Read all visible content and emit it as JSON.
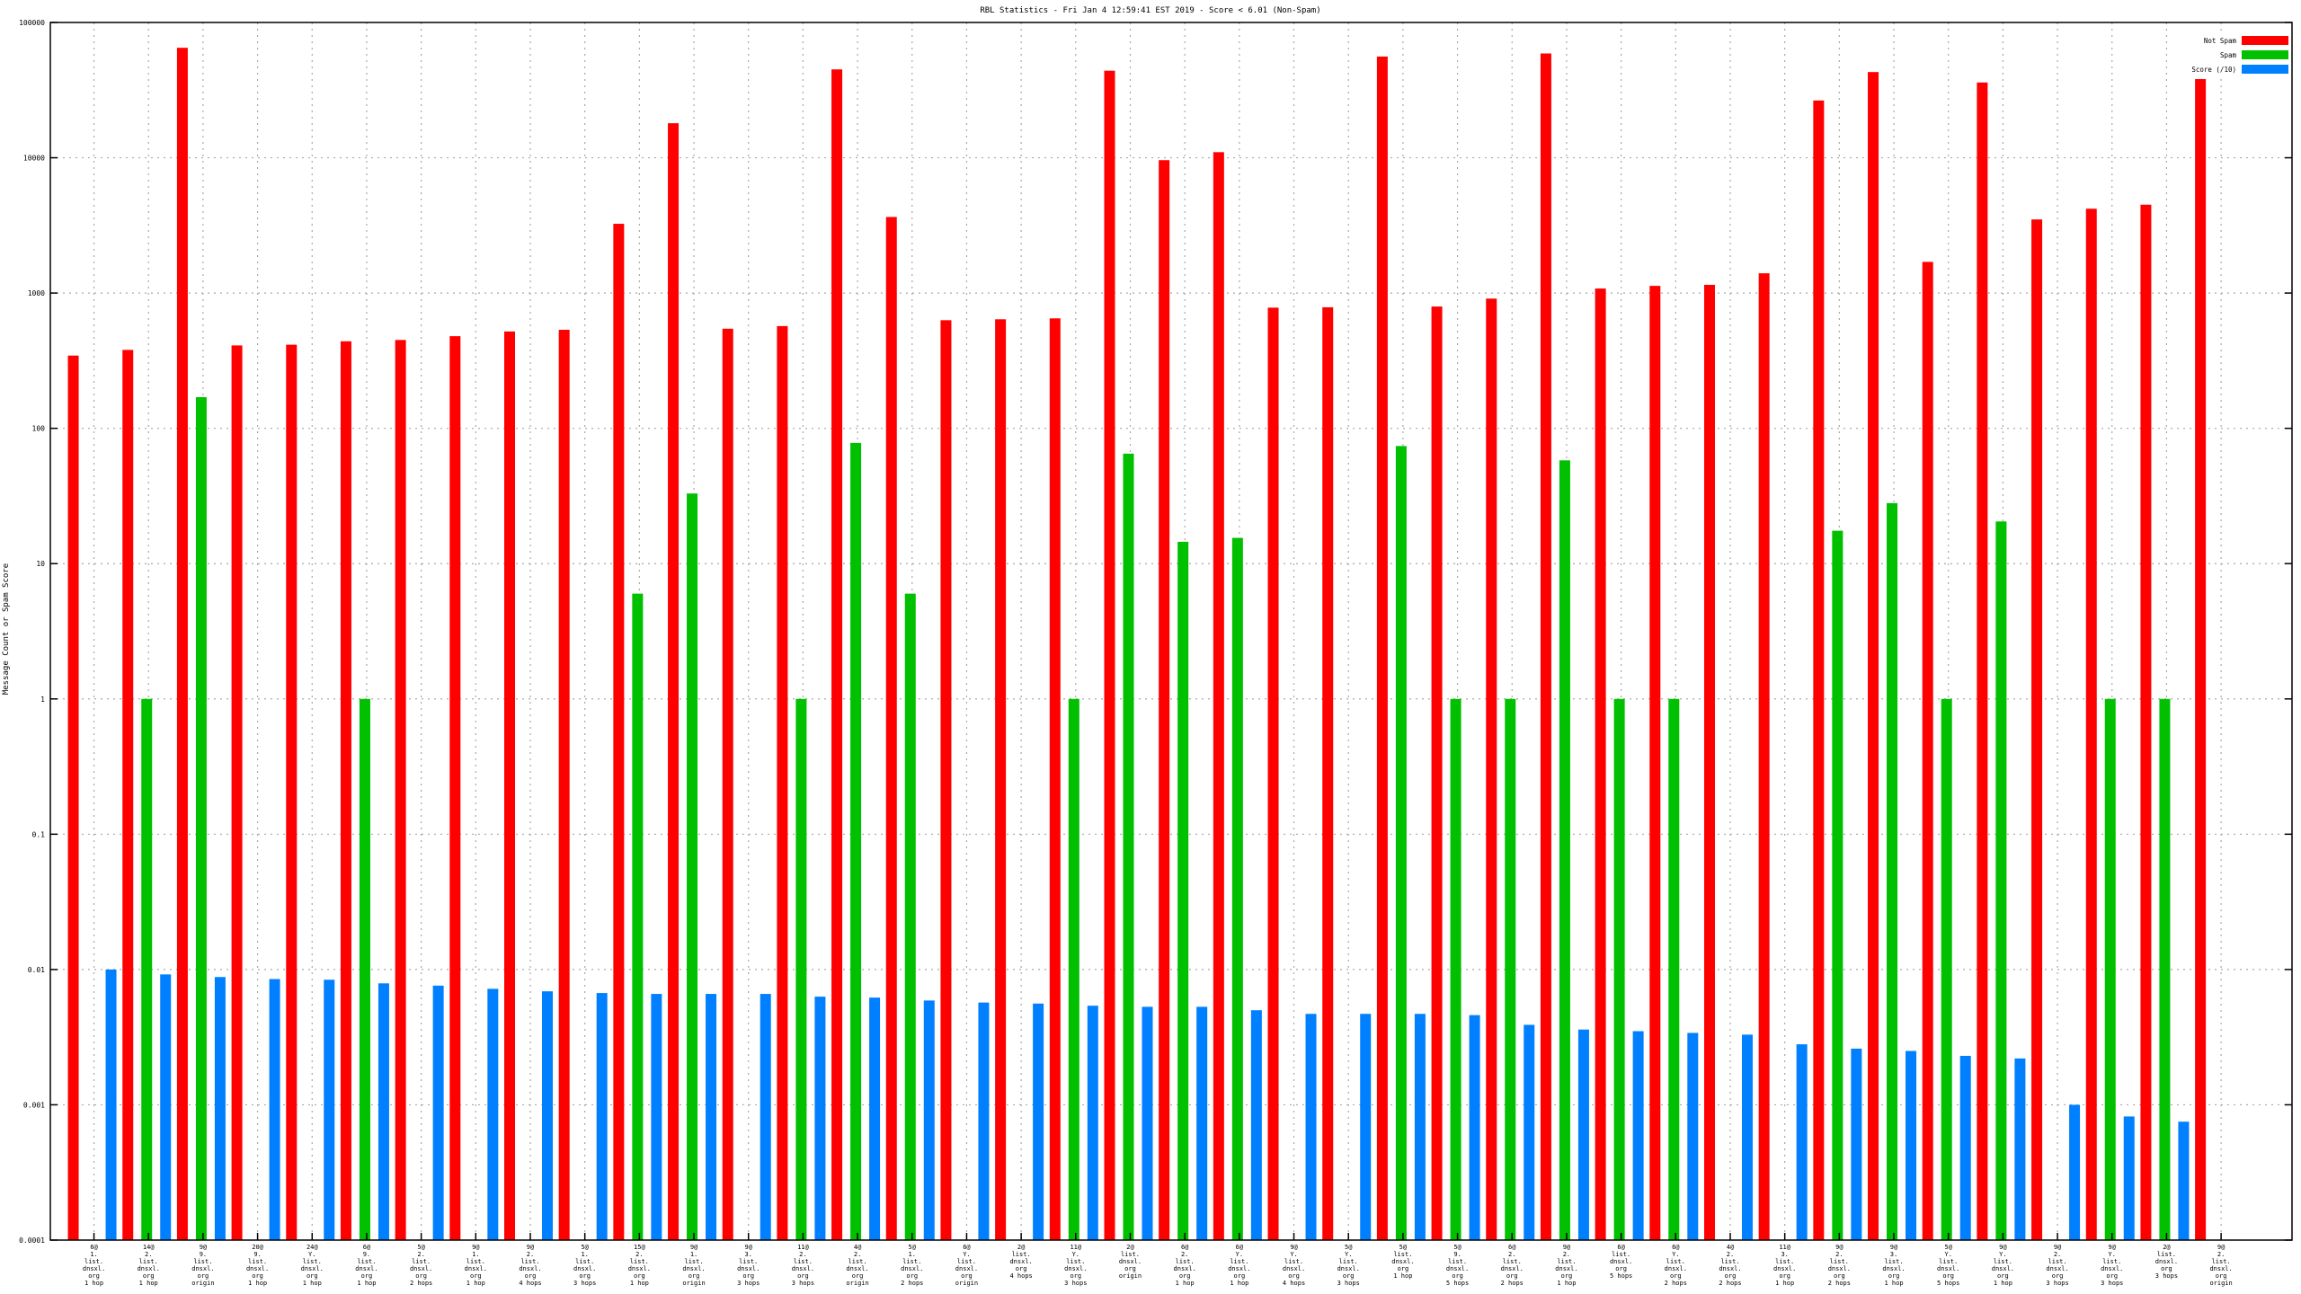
{
  "chart_data": {
    "type": "bar",
    "title": "RBL Statistics - Fri Jan  4 12:59:41 EST 2019 - Score < 6.01 (Non-Spam)",
    "ylabel": "Message Count or Spam Score",
    "xlabel": "",
    "yscale": "log",
    "ylim": [
      0.0001,
      100000
    ],
    "yticks": [
      "100000",
      "10000",
      "1000",
      "100",
      "10",
      "1",
      "0.1",
      "0.01",
      "0.001",
      "0.0001"
    ],
    "grid": true,
    "legend_position": "top-right",
    "categories": [
      [
        "6@",
        "1.",
        "list.",
        "dnsxl.",
        "org",
        "1 hop"
      ],
      [
        "14@",
        "2.",
        "list.",
        "dnsxl.",
        "org",
        "1 hop"
      ],
      [
        "9@",
        "9.",
        "list.",
        "dnsxl.",
        "org",
        "origin"
      ],
      [
        "20@",
        "9.",
        "list.",
        "dnsxl.",
        "org",
        "1 hop"
      ],
      [
        "24@",
        "Y.",
        "list.",
        "dnsxl.",
        "org",
        "1 hop"
      ],
      [
        "6@",
        "9.",
        "list.",
        "dnsxl.",
        "org",
        "1 hop"
      ],
      [
        "5@",
        "2.",
        "list.",
        "dnsxl.",
        "org",
        "2 hops"
      ],
      [
        "9@",
        "1.",
        "list.",
        "dnsxl.",
        "org",
        "1 hop"
      ],
      [
        "9@",
        "2.",
        "list.",
        "dnsxl.",
        "org",
        "4 hops"
      ],
      [
        "5@",
        "1.",
        "list.",
        "dnsxl.",
        "org",
        "3 hops"
      ],
      [
        "15@",
        "2.",
        "list.",
        "dnsxl.",
        "org",
        "1 hop"
      ],
      [
        "9@",
        "1.",
        "list.",
        "dnsxl.",
        "org",
        "origin"
      ],
      [
        "9@",
        "3.",
        "list.",
        "dnsxl.",
        "org",
        "3 hops"
      ],
      [
        "11@",
        "2.",
        "list.",
        "dnsxl.",
        "org",
        "3 hops"
      ],
      [
        "4@",
        "2.",
        "list.",
        "dnsxl.",
        "org",
        "origin"
      ],
      [
        "5@",
        "1.",
        "list.",
        "dnsxl.",
        "org",
        "2 hops"
      ],
      [
        "6@",
        "Y.",
        "list.",
        "dnsxl.",
        "org",
        "origin"
      ],
      [
        "2@",
        "list.",
        "dnsxl.",
        "org",
        "4 hops"
      ],
      [
        "11@",
        "Y.",
        "list.",
        "dnsxl.",
        "org",
        "3 hops"
      ],
      [
        "2@",
        "list.",
        "dnsxl.",
        "org",
        "origin"
      ],
      [
        "6@",
        "2.",
        "list.",
        "dnsxl.",
        "org",
        "1 hop"
      ],
      [
        "6@",
        "Y.",
        "list.",
        "dnsxl.",
        "org",
        "1 hop"
      ],
      [
        "9@",
        "Y.",
        "list.",
        "dnsxl.",
        "org",
        "4 hops"
      ],
      [
        "5@",
        "Y.",
        "list.",
        "dnsxl.",
        "org",
        "3 hops"
      ],
      [
        "5@",
        "list.",
        "dnsxl.",
        "org",
        "1 hop"
      ],
      [
        "5@",
        "9.",
        "list.",
        "dnsxl.",
        "org",
        "5 hops"
      ],
      [
        "6@",
        "2.",
        "list.",
        "dnsxl.",
        "org",
        "2 hops"
      ],
      [
        "9@",
        "2.",
        "list.",
        "dnsxl.",
        "org",
        "1 hop"
      ],
      [
        "6@",
        "list.",
        "dnsxl.",
        "org",
        "5 hops"
      ],
      [
        "6@",
        "Y.",
        "list.",
        "dnsxl.",
        "org",
        "2 hops"
      ],
      [
        "4@",
        "2.",
        "list.",
        "dnsxl.",
        "org",
        "2 hops"
      ],
      [
        "11@",
        "3.",
        "list.",
        "dnsxl.",
        "org",
        "1 hop"
      ],
      [
        "9@",
        "2.",
        "list.",
        "dnsxl.",
        "org",
        "2 hops"
      ],
      [
        "9@",
        "3.",
        "list.",
        "dnsxl.",
        "org",
        "1 hop"
      ],
      [
        "5@",
        "Y.",
        "list.",
        "dnsxl.",
        "org",
        "5 hops"
      ],
      [
        "9@",
        "Y.",
        "list.",
        "dnsxl.",
        "org",
        "1 hop"
      ],
      [
        "9@",
        "2.",
        "list.",
        "dnsxl.",
        "org",
        "3 hops"
      ],
      [
        "9@",
        "Y.",
        "list.",
        "dnsxl.",
        "org",
        "3 hops"
      ],
      [
        "2@",
        "list.",
        "dnsxl.",
        "org",
        "3 hops"
      ],
      [
        "9@",
        "2.",
        "list.",
        "dnsxl.",
        "org",
        "origin"
      ]
    ],
    "series": [
      {
        "name": "Not Spam",
        "color": "#ff0000",
        "values": [
          345,
          380,
          65000,
          410,
          415,
          440,
          450,
          480,
          520,
          535,
          3250,
          18000,
          545,
          570,
          45000,
          3650,
          630,
          640,
          650,
          44000,
          9600,
          11000,
          780,
          785,
          56000,
          795,
          910,
          59000,
          1080,
          1130,
          1150,
          1400,
          26500,
          43000,
          1700,
          36000,
          3500,
          4200,
          4500,
          50000
        ]
      },
      {
        "name": "Spam",
        "color": "#00c000",
        "values": [
          null,
          1,
          170,
          null,
          null,
          1,
          null,
          null,
          null,
          null,
          6,
          33,
          null,
          1,
          78,
          6,
          null,
          null,
          1,
          65,
          14.5,
          15.5,
          null,
          null,
          74,
          1,
          1,
          58,
          1,
          1,
          null,
          null,
          17.5,
          28,
          1,
          20.5,
          null,
          1,
          1,
          null
        ]
      },
      {
        "name": "Score (/10)",
        "color": "#0080ff",
        "values": [
          0.01,
          0.0092,
          0.0088,
          0.0085,
          0.0084,
          0.0079,
          0.0076,
          0.0072,
          0.0069,
          0.0067,
          0.0066,
          0.0066,
          0.0066,
          0.0063,
          0.0062,
          0.0059,
          0.0057,
          0.0056,
          0.0054,
          0.0053,
          0.0053,
          0.005,
          0.0047,
          0.0047,
          0.0047,
          0.0046,
          0.0039,
          0.0036,
          0.0035,
          0.0034,
          0.0033,
          0.0028,
          0.0026,
          0.0025,
          0.0023,
          0.0022,
          0.001,
          0.00082,
          0.00075,
          null
        ]
      }
    ]
  }
}
